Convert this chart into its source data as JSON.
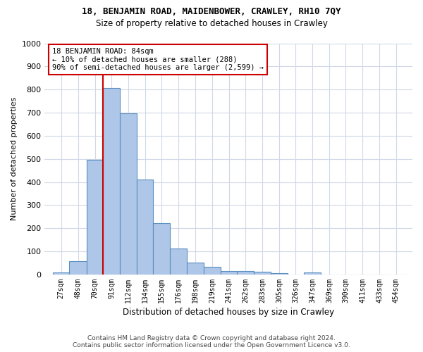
{
  "title": "18, BENJAMIN ROAD, MAIDENBOWER, CRAWLEY, RH10 7QY",
  "subtitle": "Size of property relative to detached houses in Crawley",
  "xlabel": "Distribution of detached houses by size in Crawley",
  "ylabel": "Number of detached properties",
  "footer_line1": "Contains HM Land Registry data © Crown copyright and database right 2024.",
  "footer_line2": "Contains public sector information licensed under the Open Government Licence v3.0.",
  "bin_labels": [
    "27sqm",
    "48sqm",
    "70sqm",
    "91sqm",
    "112sqm",
    "134sqm",
    "155sqm",
    "176sqm",
    "198sqm",
    "219sqm",
    "241sqm",
    "262sqm",
    "283sqm",
    "305sqm",
    "326sqm",
    "347sqm",
    "369sqm",
    "390sqm",
    "411sqm",
    "433sqm",
    "454sqm"
  ],
  "bar_values": [
    8,
    57,
    497,
    808,
    697,
    410,
    221,
    113,
    52,
    33,
    16,
    14,
    11,
    7,
    0,
    9,
    0,
    0,
    0,
    0,
    0
  ],
  "bar_color": "#aec6e8",
  "bar_edge_color": "#5a8fc0",
  "grid_color": "#d0d8e8",
  "annotation_line1": "18 BENJAMIN ROAD: 84sqm",
  "annotation_line2": "← 10% of detached houses are smaller (288)",
  "annotation_line3": "90% of semi-detached houses are larger (2,599) →",
  "vline_color": "#cc0000",
  "annotation_box_edgecolor": "#cc0000",
  "ylim": [
    0,
    1000
  ],
  "yticks": [
    0,
    100,
    200,
    300,
    400,
    500,
    600,
    700,
    800,
    900,
    1000
  ],
  "bin_edges_sqm": [
    27,
    48,
    70,
    91,
    112,
    134,
    155,
    176,
    198,
    219,
    241,
    262,
    283,
    305,
    326,
    347,
    369,
    390,
    411,
    433,
    454
  ],
  "vline_x": 91,
  "figsize": [
    6.0,
    5.0
  ],
  "dpi": 100
}
